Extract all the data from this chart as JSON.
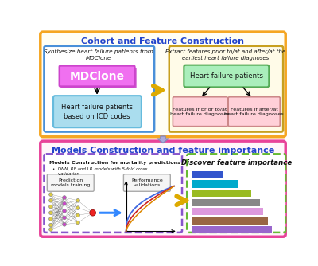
{
  "title_top": "Cohort and Feature Construction",
  "title_bottom": "Models Construction and feature importance",
  "outer_top_edge": "#f5a623",
  "outer_top_fill": "#fffef5",
  "outer_bot_edge": "#e8439a",
  "outer_bot_fill": "#fff5fa",
  "top_left_edge": "#4a90d9",
  "top_right_edge": "#c8a020",
  "top_right_fill": "#fffbe8",
  "mdclone_edge": "#cc44cc",
  "mdclone_fill": "#f070f0",
  "mdclone_shadow_fill": "#cc55cc",
  "icd_edge": "#66bbdd",
  "icd_fill": "#aaddee",
  "hf_green_edge": "#55aa55",
  "hf_green_fill": "#aaeebb",
  "feat_edge": "#cc8888",
  "feat_fill": "#ffd0d8",
  "bot_left_edge": "#8855cc",
  "bot_right_edge": "#66bb33",
  "pm_fill": "#f5f5f5",
  "pm_edge": "#aaaaaa",
  "bar_colors": [
    "#3355cc",
    "#00aacc",
    "#99bb22",
    "#888888",
    "#dd99dd",
    "#996644",
    "#9966cc"
  ],
  "bar_values": [
    0.35,
    0.52,
    0.68,
    0.78,
    0.82,
    0.87,
    0.92
  ],
  "roc_colors": [
    "#4169e1",
    "#cc2222",
    "#dd8800"
  ],
  "node_colors_input": "#ddcc44",
  "node_colors_hidden": "#cc44cc",
  "node_color_output": "#ee2222",
  "arrow_yellow": "#ddaa00",
  "arrow_purple_fill": "#aaaadd",
  "arrow_purple_edge": "#8888bb",
  "title_color": "#2244cc",
  "text_dark": "#111111"
}
